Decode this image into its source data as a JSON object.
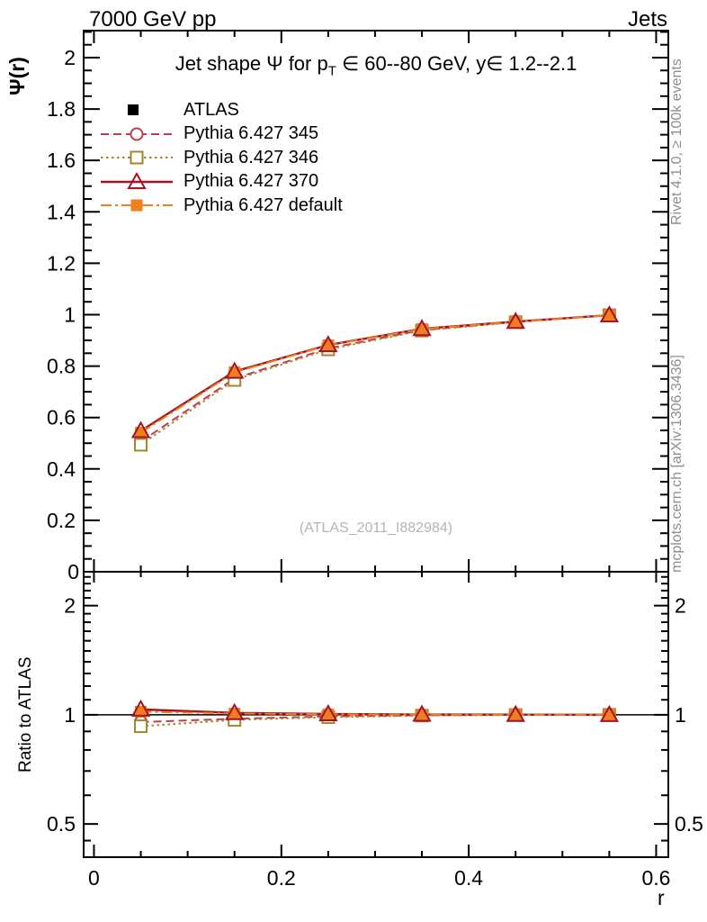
{
  "header": {
    "left": "7000 GeV pp",
    "right": "Jets"
  },
  "title": {
    "part1": "Jet shape Ψ for p",
    "sub": "T",
    "part2": " ∈ 60--80 GeV, y∈ 1.2--2.1"
  },
  "watermark": "(ATLAS_2011_I882984)",
  "side_notes": {
    "top": "Rivet 4.1.0, ≥ 100k events",
    "bottom": "mcplots.cern.ch [arXiv:1306.3436]"
  },
  "axes": {
    "main_y_title": "Ψ(r)",
    "ratio_y_title": "Ratio to ATLAS",
    "x_title": "r",
    "main_y_zero": "0"
  },
  "chart_data": {
    "type": "line",
    "title": "Jet shape Ψ for pT ∈ 60--80 GeV, y∈ 1.2--2.1",
    "x": [
      0.05,
      0.15,
      0.25,
      0.35,
      0.45,
      0.55
    ],
    "x_axis": {
      "label": "r",
      "min": -0.011,
      "max": 0.613,
      "tick_values": [
        0,
        0.2,
        0.4,
        0.6
      ],
      "tick_labels": [
        "0",
        "0.2",
        "0.4",
        "0.6"
      ],
      "minor_step": 0.05
    },
    "main_axis": {
      "label": "Ψ(r)",
      "min": 0,
      "max": 2.105,
      "tick_values": [
        0.2,
        0.4,
        0.6,
        0.8,
        1,
        1.2,
        1.4,
        1.6,
        1.8,
        2
      ],
      "tick_labels": [
        "0.2",
        "0.4",
        "0.6",
        "0.8",
        "1",
        "1.2",
        "1.4",
        "1.6",
        "1.8",
        "2"
      ],
      "minor_step": 0.05
    },
    "ratio_axis": {
      "label": "Ratio to ATLAS",
      "scale": "log",
      "min": 0.405,
      "max": 2.48,
      "tick_values": [
        2,
        1,
        0.5
      ],
      "tick_labels": [
        "2",
        "1",
        "0.5"
      ],
      "minor_ticks": [
        0.45,
        0.6,
        0.7,
        0.8,
        0.9,
        1.1,
        1.2,
        1.3,
        1.4,
        1.5,
        1.6,
        1.7,
        1.8,
        1.9,
        2.1,
        2.2,
        2.3,
        2.4
      ],
      "reference_line": 1
    },
    "reference": {
      "name": "ATLAS",
      "color": "#000000",
      "marker": "filled-square",
      "values": [
        0.53,
        0.77,
        0.878,
        0.943,
        0.972,
        0.998
      ],
      "errors": [
        0.012,
        0.01,
        0.009,
        0.008,
        0.007,
        0.007
      ]
    },
    "series": [
      {
        "name": "Pythia 6.427 345",
        "color": "#c13b52",
        "dash": "dashed",
        "marker": "open-circle",
        "values": [
          0.506,
          0.752,
          0.869,
          0.94,
          0.972,
          0.998
        ],
        "ratio": [
          0.955,
          0.975,
          0.99,
          0.997,
          1.0,
          1.0
        ]
      },
      {
        "name": "Pythia 6.427 346",
        "color": "#a2862e",
        "dash": "dotted",
        "marker": "open-square",
        "values": [
          0.494,
          0.746,
          0.865,
          0.938,
          0.971,
          0.998
        ],
        "ratio": [
          0.93,
          0.968,
          0.985,
          0.995,
          0.999,
          1.0
        ]
      },
      {
        "name": "Pythia 6.427 370",
        "color": "#a51226",
        "dash": "solid",
        "marker": "open-triangle",
        "values": [
          0.548,
          0.779,
          0.882,
          0.945,
          0.973,
          0.998
        ],
        "ratio": [
          1.035,
          1.012,
          1.005,
          1.002,
          1.001,
          1.0
        ]
      },
      {
        "name": "Pythia 6.427 default",
        "color": "#f07d1e",
        "dash": "dashdot",
        "marker": "filled-square",
        "values": [
          0.541,
          0.776,
          0.881,
          0.944,
          0.972,
          0.998
        ],
        "ratio": [
          1.02,
          1.008,
          1.003,
          1.001,
          1.0,
          1.0
        ]
      }
    ],
    "legend_position": "top-left",
    "grid": false
  }
}
